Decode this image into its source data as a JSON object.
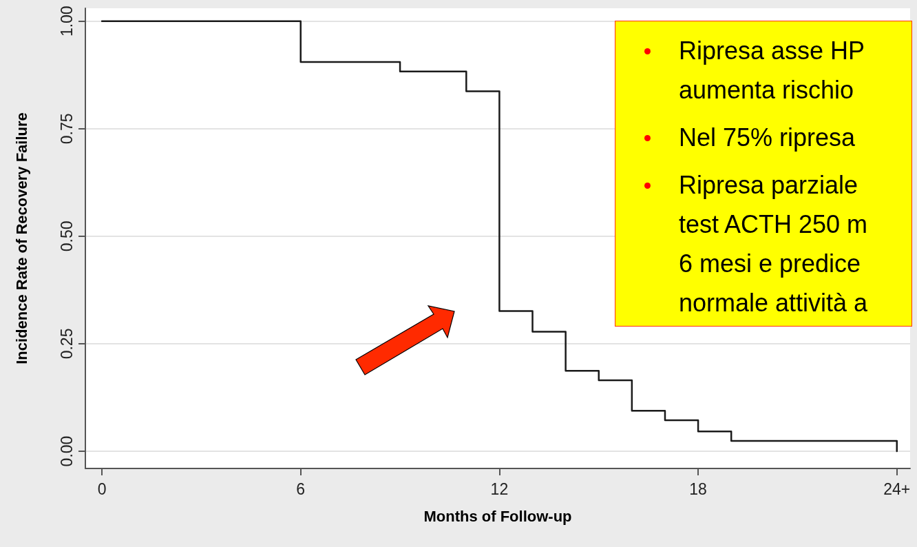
{
  "chart_data": {
    "type": "step",
    "xlabel": "Months of Follow-up",
    "ylabel": "Incidence Rate of Recovery Failure",
    "x": [
      0,
      6,
      9,
      11,
      12,
      13,
      14,
      15,
      16,
      17,
      18,
      19,
      24
    ],
    "series": [
      {
        "color": "#1a1a1a",
        "values": [
          1.0,
          0.905,
          0.883,
          0.837,
          0.326,
          0.278,
          0.187,
          0.165,
          0.094,
          0.072,
          0.046,
          0.024,
          0.0
        ]
      }
    ],
    "xlim": [
      -0.5,
      24.4
    ],
    "xticks": [
      0,
      6,
      12,
      18,
      {
        "value": 24,
        "label": "24+"
      }
    ],
    "ylim": [
      -0.04,
      1.03
    ],
    "yticks": [
      {
        "value": 0,
        "label": "0.00"
      },
      0.25,
      {
        "value": 0.5,
        "label": "0.50"
      },
      0.75,
      {
        "value": 1,
        "label": "1.00"
      }
    ],
    "grid": "y",
    "marker": "none",
    "line_style": "solid",
    "annotations": [
      "Ripresa asse HP\naumenta rischio",
      "Nel 75% ripresa",
      "Ripresa parziale\ntest ACTH 250 m\n6 mesi e  predice\nnormale attività a"
    ]
  }
}
